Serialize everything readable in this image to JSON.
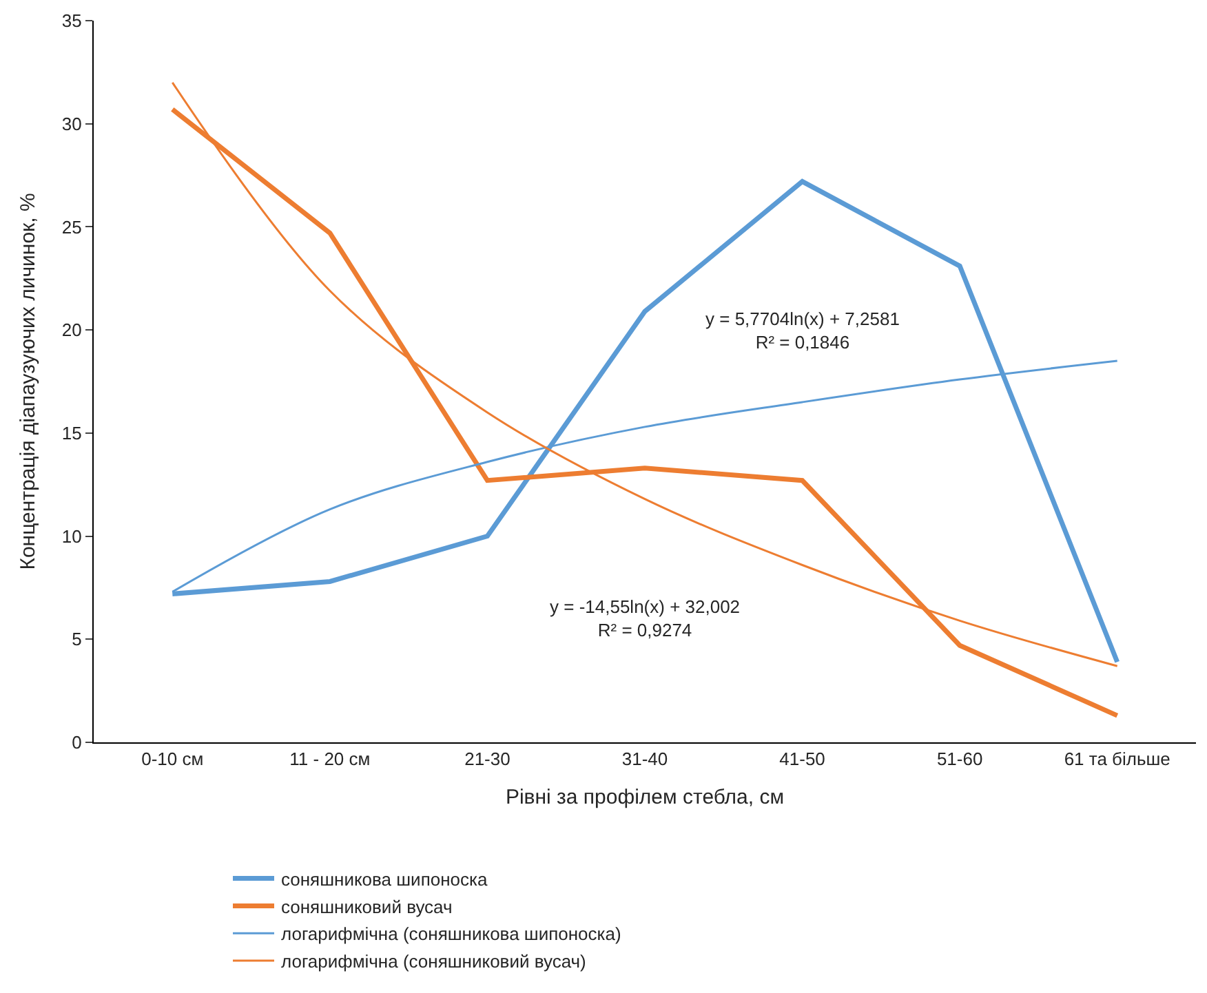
{
  "chart_data": {
    "type": "line",
    "xlabel": "Рівні за профілем стебла, см",
    "ylabel": "Концентрація діапаузуючих личинок, %",
    "categories": [
      "0-10 см",
      "11 - 20 см",
      "21-30",
      "31-40",
      "41-50",
      "51-60",
      "61 та більше"
    ],
    "ylim": [
      0,
      35
    ],
    "yticks": [
      0,
      5,
      10,
      15,
      20,
      25,
      30,
      35
    ],
    "legend": "bottom",
    "marker": "none",
    "series": [
      {
        "name": "соняшникова шипоноска",
        "color": "#5b9bd5",
        "values": [
          7.2,
          7.8,
          10.0,
          20.9,
          27.2,
          23.1,
          3.9
        ]
      },
      {
        "name": "соняшниковий вусач",
        "color": "#ed7d31",
        "values": [
          30.7,
          24.7,
          12.7,
          13.3,
          12.7,
          4.7,
          1.3
        ]
      },
      {
        "name": "логарифмічна (соняшникова шипоноска)",
        "color": "#5b9bd5",
        "type": "line",
        "line_style": "solid",
        "values": [
          7.3,
          11.3,
          13.6,
          15.3,
          16.5,
          17.6,
          18.5
        ]
      },
      {
        "name": "логарифмічна (соняшниковий вусач)",
        "color": "#ed7d31",
        "type": "line",
        "line_style": "solid",
        "values": [
          32.0,
          21.9,
          16.0,
          11.8,
          8.6,
          5.9,
          3.7
        ]
      }
    ],
    "annotations": [
      "y = 5,7704ln(x) + 7,2581\nR² = 0,1846",
      "y = -14,55ln(x) + 32,002\nR² = 0,9274"
    ]
  }
}
